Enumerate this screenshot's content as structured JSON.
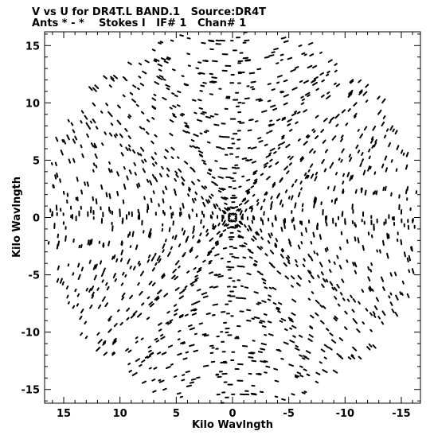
{
  "header": {
    "title_line1": "V vs U for DR4T.L BAND.1   Source:DR4T",
    "title_line2": "Ants * - *    Stokes I   IF# 1   Chan# 1"
  },
  "chart_data": {
    "type": "scatter",
    "title": "V vs U for DR4T.L BAND.1   Source:DR4T",
    "subtitle": "Ants * - *    Stokes I   IF# 1   Chan# 1",
    "xlabel": "Kilo Wavlngth",
    "ylabel": "Kilo Wavlngth",
    "xlim": [
      16.7,
      -16.7
    ],
    "ylim": [
      -16.2,
      16.2
    ],
    "xticks": [
      15,
      10,
      5,
      0,
      -5,
      -10,
      -15
    ],
    "yticks": [
      15,
      10,
      5,
      0,
      -5,
      -10,
      -15
    ],
    "x_direction": "reversed",
    "grid": false,
    "marker_color": "#000000",
    "uv_coverage": {
      "pattern": "symmetric radial point pattern of (u, v) samples about the origin",
      "max_radius": 16.5,
      "arms": 12,
      "ring_count": 18
    }
  }
}
